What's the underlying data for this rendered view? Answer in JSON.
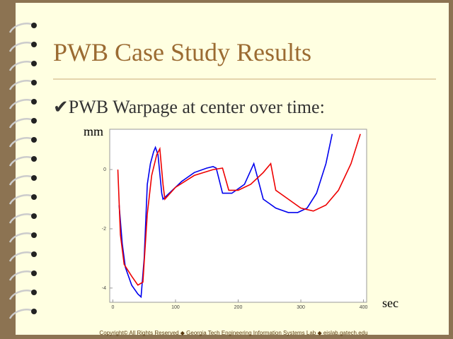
{
  "slide": {
    "title": "PWB Case Study Results",
    "bullet": "✔PWB Warpage at center over time:",
    "footer": "Copyright© All Rights Reserved  ◆  Georgia Tech Engineering Information Systems Lab ◆ eislab.gatech.edu"
  },
  "chart_data": {
    "type": "line",
    "y_label": "mm",
    "x_label": "sec",
    "xlim": [
      -5,
      405
    ],
    "xticks": [
      0,
      100,
      200,
      300,
      400
    ],
    "ylim": [
      -4.48,
      1.36
    ],
    "yticks": [
      -4,
      -2,
      0
    ],
    "series": [
      {
        "name": "blue",
        "color": "#0000ee",
        "x": [
          10,
          15,
          20,
          30,
          40,
          45,
          50,
          55,
          60,
          65,
          68,
          72,
          78,
          80,
          90,
          110,
          130,
          150,
          160,
          165,
          175,
          190,
          210,
          225,
          230,
          240,
          260,
          280,
          295,
          310,
          325,
          340,
          350
        ],
        "values": [
          -1.2,
          -2.5,
          -3.3,
          -3.9,
          -4.2,
          -4.3,
          -3,
          -0.5,
          0.2,
          0.6,
          0.75,
          0.5,
          -0.8,
          -1,
          -0.8,
          -0.4,
          -0.1,
          0.05,
          0.1,
          0.05,
          -0.8,
          -0.8,
          -0.5,
          0.2,
          -0.2,
          -1,
          -1.3,
          -1.45,
          -1.45,
          -1.3,
          -0.8,
          0.2,
          1.2
        ]
      },
      {
        "name": "red",
        "color": "#ee0000",
        "x": [
          8,
          12,
          18,
          30,
          40,
          48,
          55,
          62,
          70,
          75,
          80,
          83,
          100,
          130,
          160,
          175,
          185,
          200,
          220,
          240,
          252,
          260,
          280,
          300,
          320,
          340,
          360,
          380,
          395
        ],
        "values": [
          0,
          -2.2,
          -3.2,
          -3.6,
          -3.9,
          -3.8,
          -1.5,
          -0.2,
          0.5,
          0.7,
          -0.5,
          -1,
          -0.6,
          -0.2,
          0,
          0.05,
          -0.7,
          -0.7,
          -0.5,
          -0.1,
          0.2,
          -0.7,
          -1,
          -1.3,
          -1.4,
          -1.2,
          -0.7,
          0.2,
          1.2
        ]
      }
    ]
  }
}
